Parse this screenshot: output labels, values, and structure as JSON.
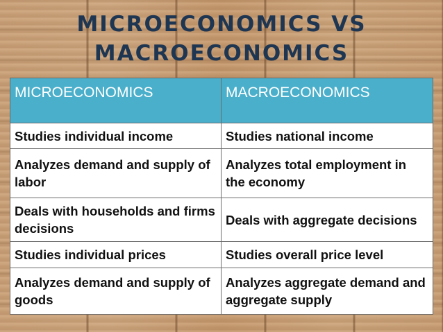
{
  "title": {
    "line1": "MICROECONOMICS VS",
    "line2": "MACROECONOMICS"
  },
  "table": {
    "headers": [
      "MICROECONOMICS",
      "MACROECONOMICS"
    ],
    "rows": [
      [
        "Studies individual income",
        "Studies national income"
      ],
      [
        "Analyzes demand and supply of labor",
        "Analyzes total employment in the economy"
      ],
      [
        "Deals with households and firms decisions",
        "Deals with aggregate decisions"
      ],
      [
        "Studies individual prices",
        "Studies overall price level"
      ],
      [
        "Analyzes demand and supply of goods",
        "Analyzes aggregate demand and aggregate supply"
      ]
    ]
  },
  "colors": {
    "title": "#1e3652",
    "header_bg": "#4aafcb",
    "header_text": "#ffffff",
    "cell_bg": "#ffffff",
    "background": "#c59b72"
  }
}
